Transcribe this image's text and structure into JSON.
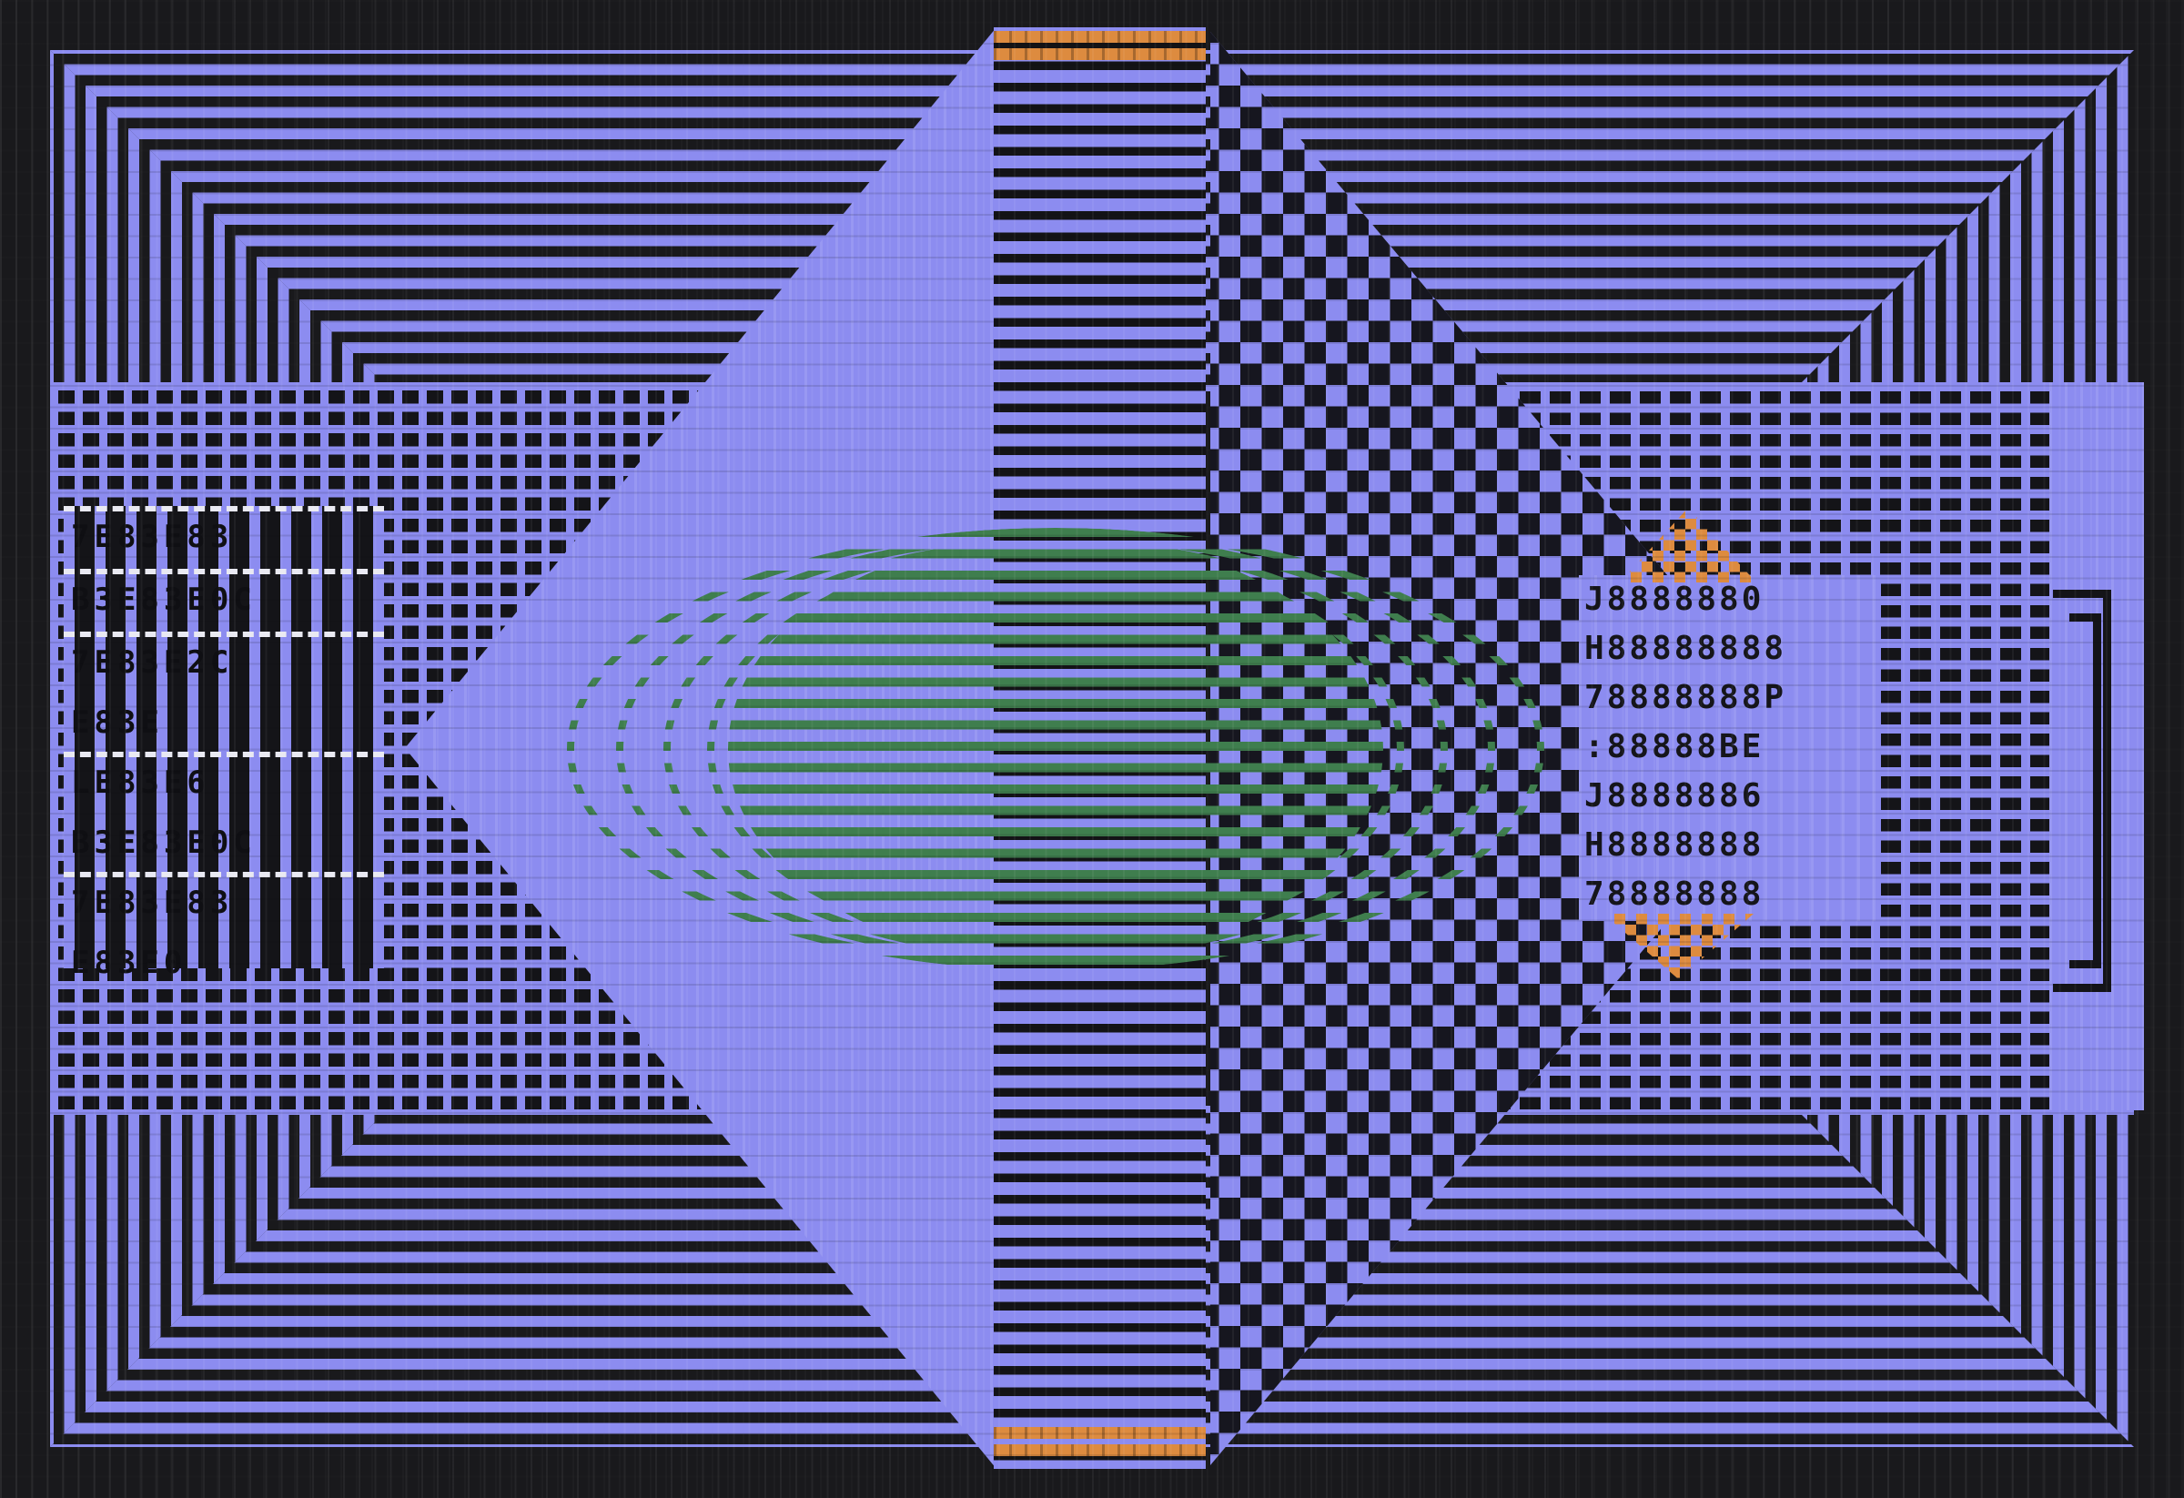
{
  "palette": {
    "bg": "#19191C",
    "ink": "#141418",
    "purple": "#8C8CF0",
    "purple_bright": "#B9B9F7",
    "green": "#3F7E4E",
    "orange": "#DD8B3F",
    "white": "#E9E9F2"
  },
  "left_panel": {
    "rows": [
      "7E83E83",
      "B3E83E0C",
      "7E83E2C",
      "E83E",
      "LE83E6",
      "B3E83E0C",
      "7E83E83",
      "E83E0"
    ]
  },
  "right_panel": {
    "rows": [
      "J8888880",
      "H88888888",
      "78888888P",
      ":88888BE",
      "J8888886",
      "H8888888",
      "78888888"
    ]
  }
}
